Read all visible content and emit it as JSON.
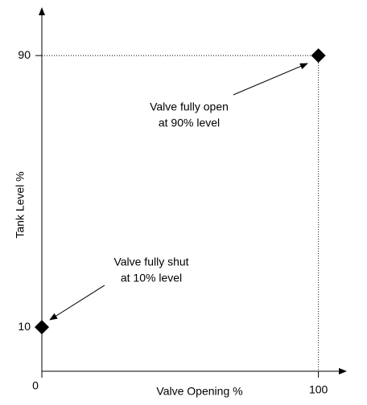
{
  "chart_data": {
    "type": "scatter",
    "x_label": "Valve Opening %",
    "y_label": "Tank Level %",
    "x": [
      0,
      100
    ],
    "values": [
      10,
      90
    ],
    "color": "#000000",
    "xlim": [
      0,
      110
    ],
    "ylim": [
      -3,
      104
    ],
    "xticks": [
      0,
      100
    ],
    "yticks": [
      10,
      90
    ],
    "annotations": [
      {
        "lines": [
          "Valve fully open",
          "at 90% level"
        ]
      },
      {
        "lines": [
          "Valve fully shut",
          "at 10% level"
        ]
      }
    ]
  }
}
